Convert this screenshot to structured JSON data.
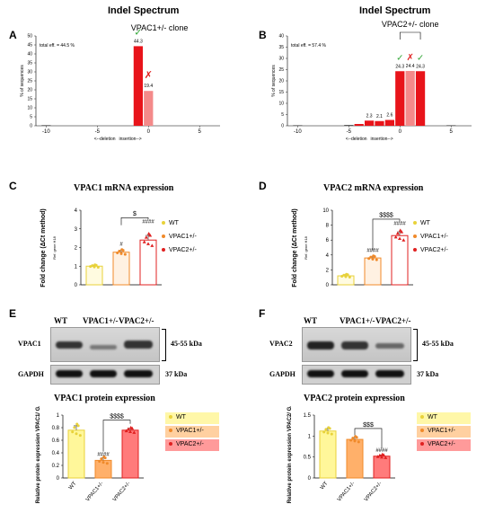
{
  "panelA": {
    "letter": "A",
    "header": "Indel Spectrum",
    "clone": "VPAC1+/- clone",
    "total_eff": "total eff. = 44.5 %",
    "ylabel": "% of sequences",
    "xlabel_left": "<--deletion",
    "xlabel_right": "insertion-->",
    "bar_labels": [
      "44.3",
      "19.4"
    ]
  },
  "panelB": {
    "letter": "B",
    "header": "Indel Spectrum",
    "clone": "VPAC2+/- clone",
    "total_eff": "total eff. = 57.4 %",
    "ylabel": "% of sequences",
    "xlabel_left": "<--deletion",
    "xlabel_right": "insertion-->",
    "bar_labels": [
      "2.3",
      "2.1",
      "2.6",
      "24.3",
      "24.4",
      "24.3"
    ]
  },
  "panelC": {
    "letter": "C",
    "title": "VPAC1 mRNA expression",
    "ylabel": "Fold change (ΔCt method)",
    "ref": "Ref. gene H18",
    "sig": [
      "#",
      "####",
      "$"
    ]
  },
  "panelD": {
    "letter": "D",
    "title": "VPAC2 mRNA expression",
    "ylabel": "Fold change (ΔCt method)",
    "ref": "Ref. gene H18",
    "sig": [
      "####",
      "####",
      "$$$$"
    ]
  },
  "panelE": {
    "letter": "E",
    "lanes": [
      "WT",
      "VPAC1+/-",
      "VPAC2+/-"
    ],
    "blot1": "VPAC1",
    "blot2": "GAPDH",
    "kda1": "45-55 kDa",
    "kda2": "37 kDa",
    "title": "VPAC1 protein expression",
    "ylabel": "Relative protein expression VPAC1/ GAPDH",
    "sig": [
      "####",
      "$$$$"
    ]
  },
  "panelF": {
    "letter": "F",
    "lanes": [
      "WT",
      "VPAC1+/-",
      "VPAC2+/-"
    ],
    "blot1": "VPAC2",
    "blot2": "GAPDH",
    "kda1": "45-55 kDa",
    "kda2": "37 kDa",
    "title": "VPAC2 protein expression",
    "ylabel": "Relative protein expression VPAC2/ GAPDH",
    "sig": [
      "####",
      "$$$"
    ]
  },
  "legend": [
    "WT",
    "VPAC1+/-",
    "VPAC2+/-"
  ],
  "colors": {
    "wt": "#e8d23a",
    "vpac1": "#f08a2a",
    "vpac2": "#e02020",
    "bar_red": "#e8141a",
    "bar_pink": "#f48a8a",
    "check": "#35a83a"
  },
  "chart_data": [
    {
      "type": "bar",
      "id": "A",
      "x": [
        -10,
        -1,
        0
      ],
      "values": [
        0.3,
        44.3,
        19.4
      ],
      "xlim": [
        -11,
        7
      ],
      "ylim": [
        0,
        50
      ],
      "xticks": [
        -10,
        -5,
        0,
        5
      ]
    },
    {
      "type": "bar",
      "id": "B",
      "x": [
        -10,
        -5,
        -4,
        -3,
        -2,
        -1,
        0,
        1,
        2,
        5
      ],
      "values": [
        0.2,
        0.3,
        0.8,
        2.3,
        2.1,
        2.6,
        24.3,
        24.4,
        24.3,
        0.2
      ],
      "xlim": [
        -11,
        7
      ],
      "ylim": [
        0,
        40
      ],
      "xticks": [
        -10,
        -5,
        0,
        5
      ]
    },
    {
      "type": "bar",
      "id": "C",
      "categories": [
        "WT",
        "VPAC1+/-",
        "VPAC2+/-"
      ],
      "values": [
        1.0,
        1.75,
        2.4
      ],
      "errors": [
        0.05,
        0.1,
        0.25
      ],
      "ylim": [
        0,
        4
      ],
      "yticks": [
        0,
        1,
        2,
        3,
        4
      ]
    },
    {
      "type": "bar",
      "id": "D",
      "categories": [
        "WT",
        "VPAC1+/-",
        "VPAC2+/-"
      ],
      "values": [
        1.2,
        3.6,
        6.6
      ],
      "errors": [
        0.15,
        0.2,
        0.5
      ],
      "ylim": [
        0,
        10
      ],
      "yticks": [
        0,
        2,
        4,
        6,
        8,
        10
      ]
    },
    {
      "type": "bar",
      "id": "E",
      "categories": [
        "WT",
        "VPAC1+/-",
        "VPAC2+/-"
      ],
      "values": [
        0.76,
        0.28,
        0.76
      ],
      "errors": [
        0.07,
        0.04,
        0.03
      ],
      "ylim": [
        0,
        1.0
      ],
      "yticks": [
        0,
        0.2,
        0.4,
        0.6,
        0.8,
        1.0
      ]
    },
    {
      "type": "bar",
      "id": "F",
      "categories": [
        "WT",
        "VPAC1+/-",
        "VPAC2+/-"
      ],
      "values": [
        1.12,
        0.92,
        0.52
      ],
      "errors": [
        0.06,
        0.05,
        0.03
      ],
      "ylim": [
        0,
        1.5
      ],
      "yticks": [
        0,
        0.5,
        1.0,
        1.5
      ]
    }
  ]
}
